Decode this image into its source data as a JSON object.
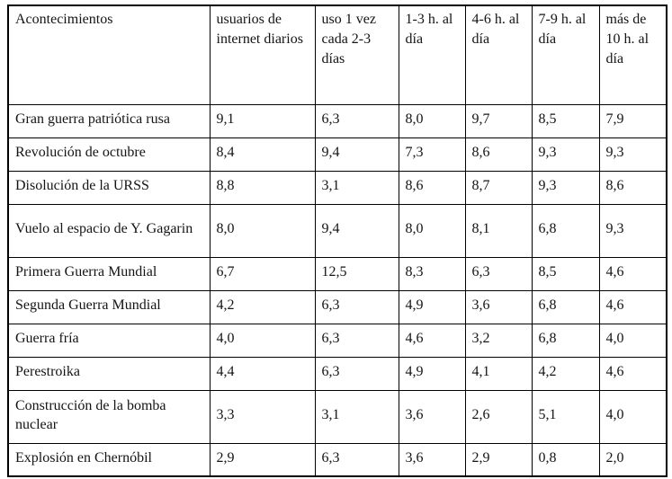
{
  "table": {
    "columns": [
      "Acontecimientos",
      "usuarios de internet diarios",
      "uso 1 vez cada 2-3 días",
      "1-3 h. al día",
      "4-6 h. al día",
      "7-9 h. al día",
      "más de 10 h. al día"
    ],
    "rows": [
      {
        "label": "Gran guerra patriótica rusa",
        "values": [
          "9,1",
          "6,3",
          "8,0",
          "9,7",
          "8,5",
          "7,9"
        ]
      },
      {
        "label": "Revolución de octubre",
        "values": [
          "8,4",
          "9,4",
          "7,3",
          "8,6",
          "9,3",
          "9,3"
        ]
      },
      {
        "label": "Disolución de la URSS",
        "values": [
          "8,8",
          "3,1",
          "8,6",
          "8,7",
          "9,3",
          "8,6"
        ]
      },
      {
        "label": "Vuelo al espacio de Y. Gagarin",
        "values": [
          "8,0",
          "9,4",
          "8,0",
          "8,1",
          "6,8",
          "9,3"
        ]
      },
      {
        "label": "Primera Guerra Mundial",
        "values": [
          "6,7",
          "12,5",
          "8,3",
          "6,3",
          "8,5",
          "4,6"
        ]
      },
      {
        "label": "Segunda Guerra Mundial",
        "values": [
          "4,2",
          "6,3",
          "4,9",
          "3,6",
          "6,8",
          "4,6"
        ]
      },
      {
        "label": "Guerra fría",
        "values": [
          "4,0",
          "6,3",
          "4,6",
          "3,2",
          "6,8",
          "4,0"
        ]
      },
      {
        "label": "Perestroika",
        "values": [
          "4,4",
          "6,3",
          "4,9",
          "4,1",
          "4,2",
          "4,6"
        ]
      },
      {
        "label": "Construcción de la bomba nuclear",
        "values": [
          "3,3",
          "3,1",
          "3,6",
          "2,6",
          "5,1",
          "4,0"
        ]
      },
      {
        "label": "Explosión en Chernóbil",
        "values": [
          "2,9",
          "6,3",
          "3,6",
          "2,9",
          "0,8",
          "2,0"
        ]
      }
    ]
  }
}
